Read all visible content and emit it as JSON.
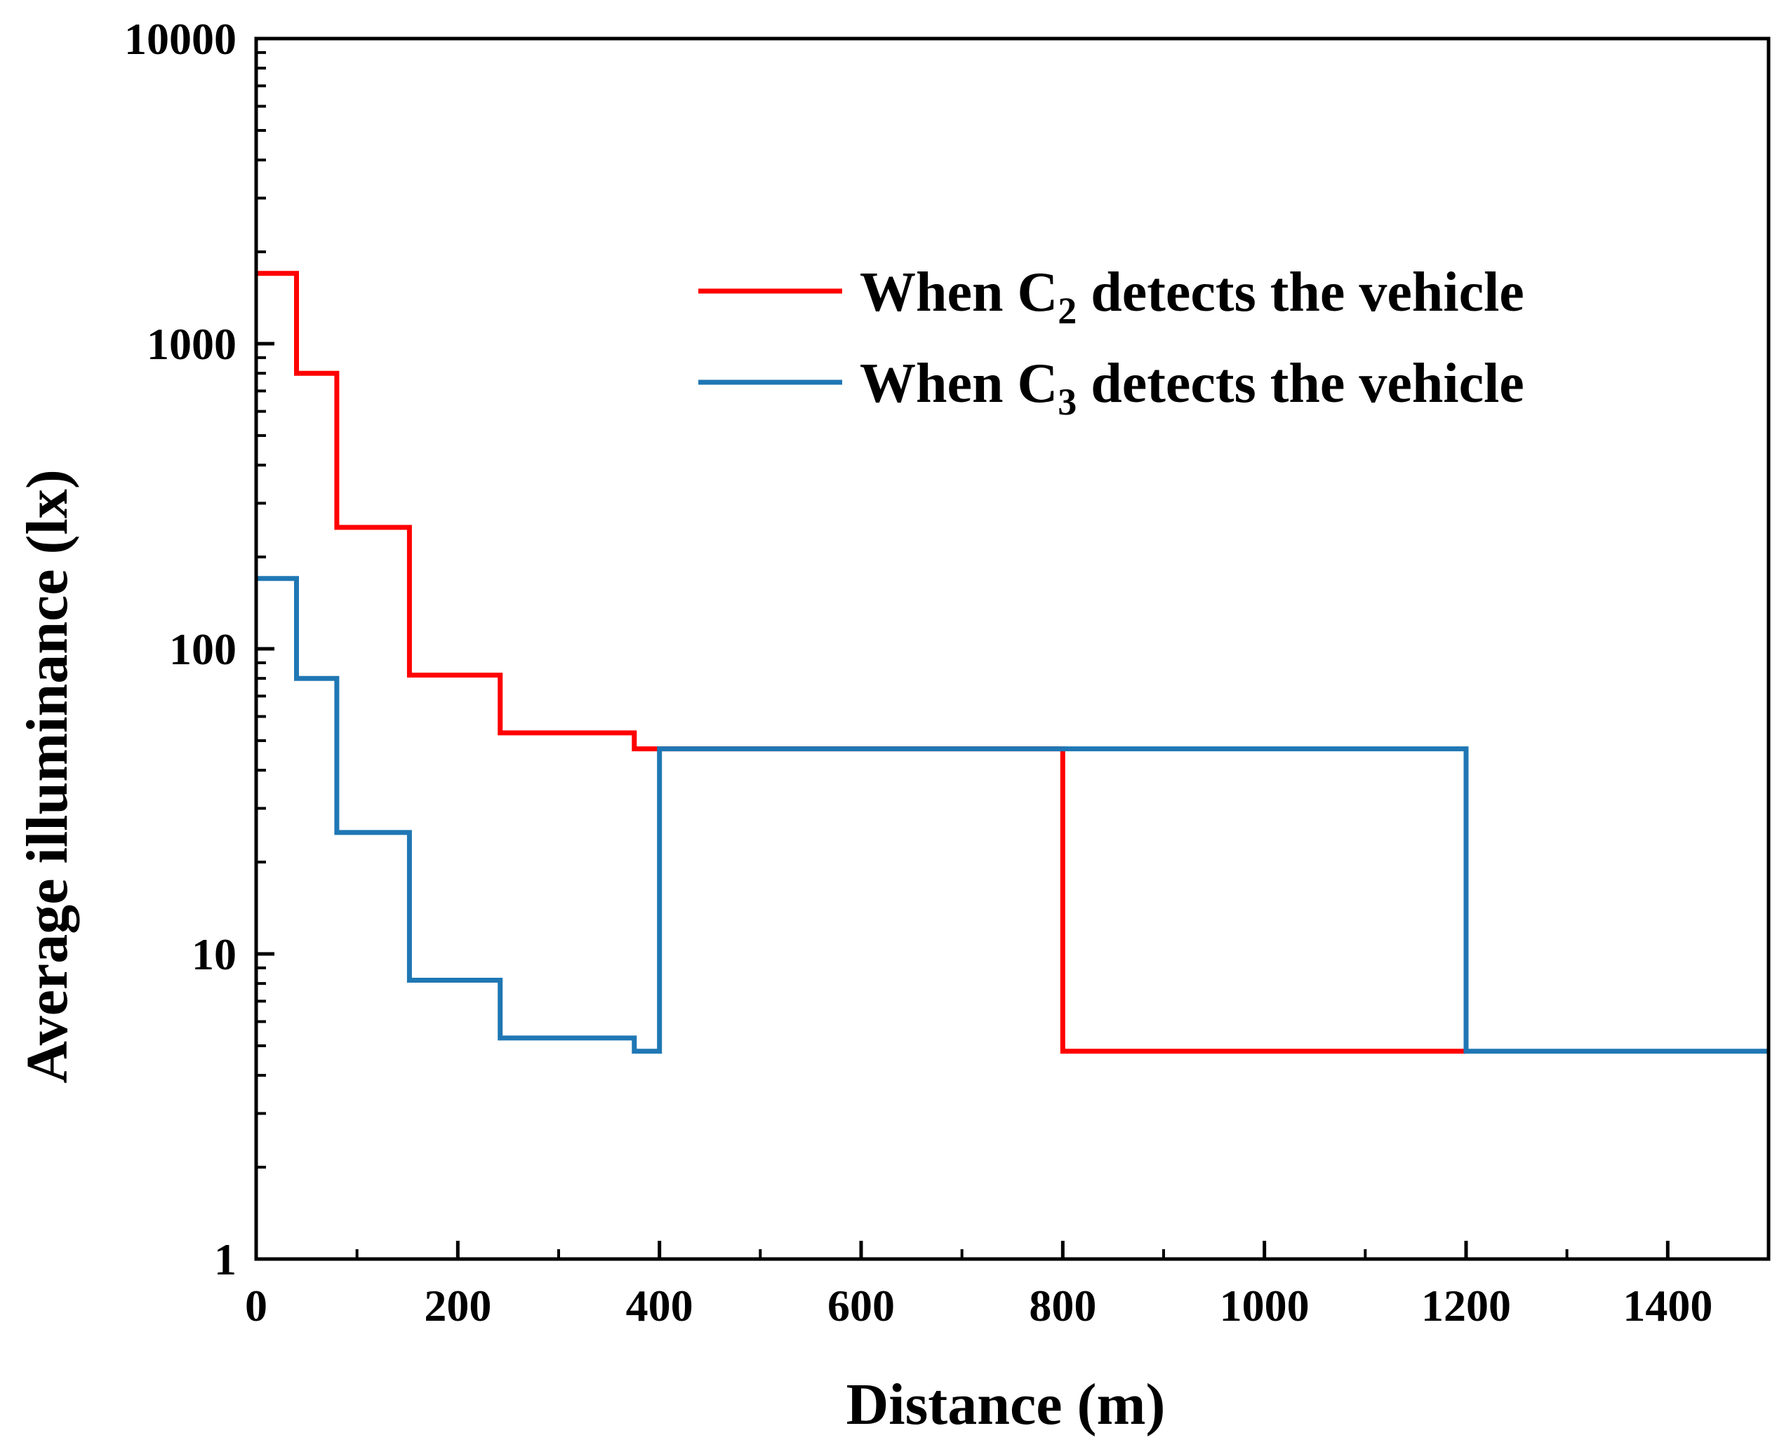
{
  "chart_data": {
    "type": "line",
    "step": true,
    "title": "",
    "xlabel": "Distance (m)",
    "ylabel": "Average illuminance (lx)",
    "xlim": [
      0,
      1500
    ],
    "ylim": [
      1,
      10000
    ],
    "yscale": "log",
    "xticks": [
      0,
      200,
      400,
      600,
      800,
      1000,
      1200,
      1400
    ],
    "xtick_labels": [
      "0",
      "200",
      "400",
      "600",
      "800",
      "1000",
      "1200",
      "1400"
    ],
    "yticks": [
      1,
      10,
      100,
      1000,
      10000
    ],
    "ytick_labels": [
      "1",
      "10",
      "100",
      "1000",
      "10000"
    ],
    "grid": false,
    "legend_position": "top-right",
    "series": [
      {
        "name_prefix": "When C",
        "name_sub": "2",
        "name_suffix": " detects the vehicle",
        "color": "#ff0000",
        "x": [
          0,
          40,
          40,
          80,
          80,
          152,
          152,
          242,
          242,
          375,
          375,
          400,
          400,
          800,
          800,
          1200
        ],
        "y": [
          1700,
          1700,
          800,
          800,
          250,
          250,
          82,
          82,
          53,
          53,
          47,
          47,
          47,
          47,
          4.8,
          4.8
        ]
      },
      {
        "name_prefix": "When C",
        "name_sub": "3",
        "name_suffix": " detects the vehicle",
        "color": "#1f77b4",
        "x": [
          0,
          40,
          40,
          80,
          80,
          152,
          152,
          242,
          242,
          375,
          375,
          400,
          400,
          1200,
          1200,
          1500
        ],
        "y": [
          170,
          170,
          80,
          80,
          25,
          25,
          8.2,
          8.2,
          5.3,
          5.3,
          4.8,
          4.8,
          47,
          47,
          4.8,
          4.8
        ]
      }
    ]
  }
}
